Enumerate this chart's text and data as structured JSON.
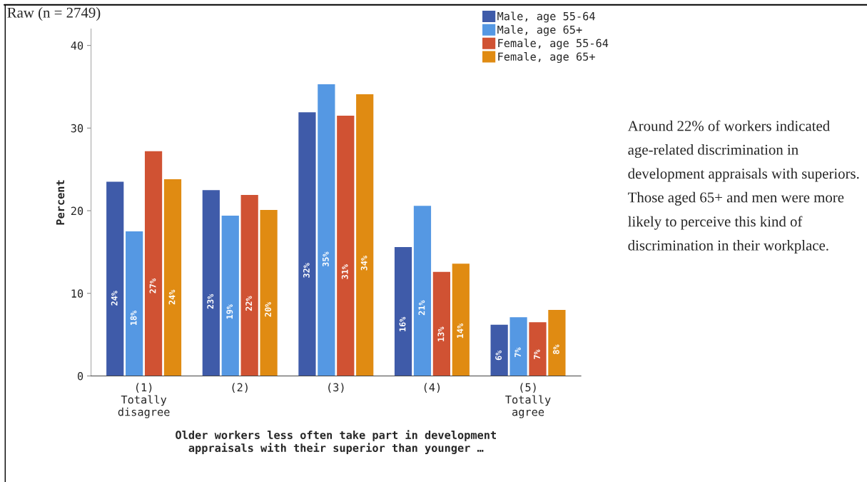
{
  "chart_data": {
    "type": "bar",
    "categories": [
      "(1)\nTotally\ndisagree",
      "(2)",
      "(3)",
      "(4)",
      "(5)\nTotally\nagree"
    ],
    "series": [
      {
        "name": "Male, age 55-64",
        "color": "#3f5ba9",
        "values": [
          23.5,
          22.5,
          31.9,
          15.6,
          6.2
        ],
        "value_labels": [
          "24%",
          "23%",
          "32%",
          "16%",
          "6%"
        ]
      },
      {
        "name": "Male, age 65+",
        "color": "#5598e3",
        "values": [
          17.5,
          19.4,
          35.3,
          20.6,
          7.1
        ],
        "value_labels": [
          "18%",
          "19%",
          "35%",
          "21%",
          "7%"
        ]
      },
      {
        "name": "Female, age 55-64",
        "color": "#d05233",
        "values": [
          27.2,
          21.9,
          31.5,
          12.6,
          6.5
        ],
        "value_labels": [
          "27%",
          "22%",
          "31%",
          "13%",
          "7%"
        ]
      },
      {
        "name": "Female, age 65+",
        "color": "#e08b12",
        "values": [
          23.8,
          20.1,
          34.1,
          13.6,
          8.0
        ],
        "value_labels": [
          "24%",
          "20%",
          "34%",
          "14%",
          "8%"
        ]
      }
    ],
    "ylabel": "Percent",
    "xlabel": "Older workers less often take part in development\nappraisals with their superior than younger …",
    "ylim": [
      0,
      42
    ],
    "yticks": [
      0,
      10,
      20,
      30,
      40
    ],
    "grid": false,
    "legend": "top right",
    "annotations": [
      "Raw (n = 2749)",
      "Around 22% of workers indicated age-related discrimination in development appraisals with superiors. Those aged 65+ and men were more likely to perceive this kind of discrimination in their workplace."
    ]
  }
}
